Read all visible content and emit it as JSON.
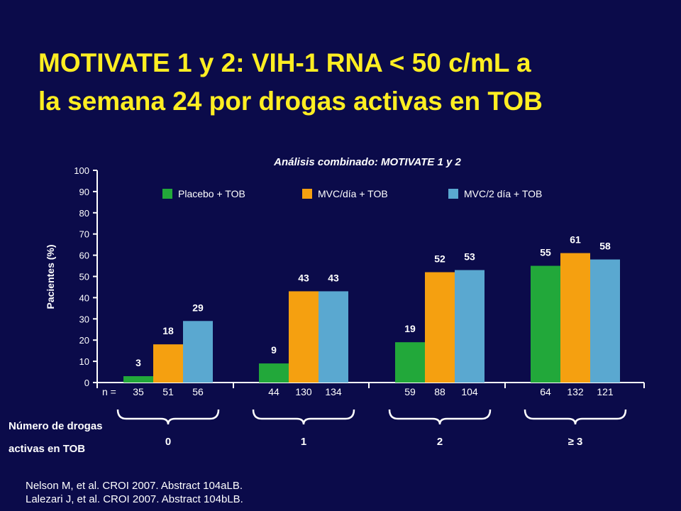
{
  "title_lines": [
    "MOTIVATE 1 y 2: VIH-1 RNA < 50 c/mL a",
    "la semana 24 por drogas activas en TOB"
  ],
  "references": [
    "Nelson M, et al. CROI 2007. Abstract 104aLB.",
    "Lalezari J, et al. CROI 2007. Abstract 104bLB."
  ],
  "colors": {
    "background": "#0b0b4a",
    "title": "#ffee22",
    "text": "#ffffff",
    "placebo": "#22a83a",
    "mvc_dia": "#f5a010",
    "mvc_2dia": "#5aa8d0"
  },
  "chart_data": {
    "type": "bar",
    "title": "Análisis combinado: MOTIVATE 1 y 2",
    "ylabel": "Pacientes (%)",
    "xlabel_lines": [
      "Número de drogas",
      "activas en TOB"
    ],
    "ylim": [
      0,
      100
    ],
    "yticks": [
      0,
      10,
      20,
      30,
      40,
      50,
      60,
      70,
      80,
      90,
      100
    ],
    "grid": false,
    "legend_position": "top",
    "categories": [
      "0",
      "1",
      "2",
      "≥ 3"
    ],
    "n_label": "n =",
    "series": [
      {
        "name": "Placebo + TOB",
        "color": "#22a83a",
        "values": [
          3,
          9,
          19,
          55
        ],
        "n": [
          "35",
          "44",
          "59",
          "64"
        ]
      },
      {
        "name": "MVC/día + TOB",
        "color": "#f5a010",
        "values": [
          18,
          43,
          52,
          61
        ],
        "n": [
          "51",
          "130",
          "88",
          "132"
        ]
      },
      {
        "name": "MVC/2 día + TOB",
        "color": "#5aa8d0",
        "values": [
          29,
          43,
          53,
          58
        ],
        "n": [
          "56",
          "134",
          "104",
          "121"
        ]
      }
    ]
  }
}
